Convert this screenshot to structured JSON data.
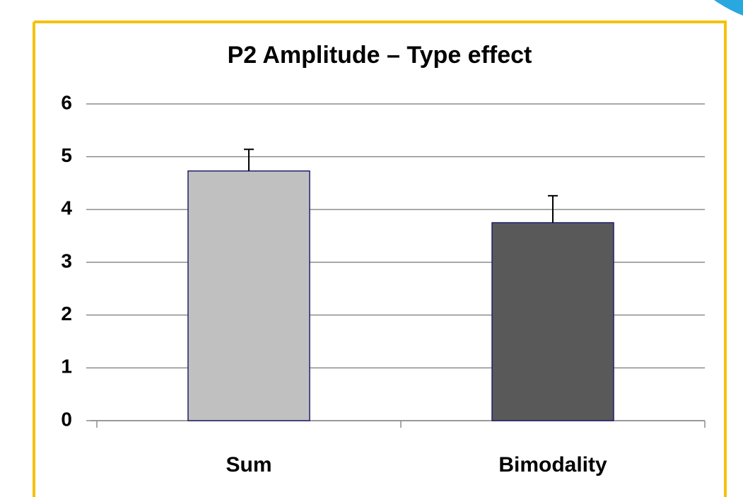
{
  "chart_data": {
    "type": "bar",
    "title": "P2 Amplitude – Type effect",
    "categories": [
      "Sum",
      "Bimodality"
    ],
    "values": [
      4.73,
      3.75
    ],
    "errors": [
      0.41,
      0.51
    ],
    "colors": [
      "#c0c0c0",
      "#595959"
    ],
    "edge_color": "#1f1f6e",
    "ylim": [
      0,
      6
    ],
    "yticks": [
      0,
      1,
      2,
      3,
      4,
      5,
      6
    ],
    "grid": true
  }
}
